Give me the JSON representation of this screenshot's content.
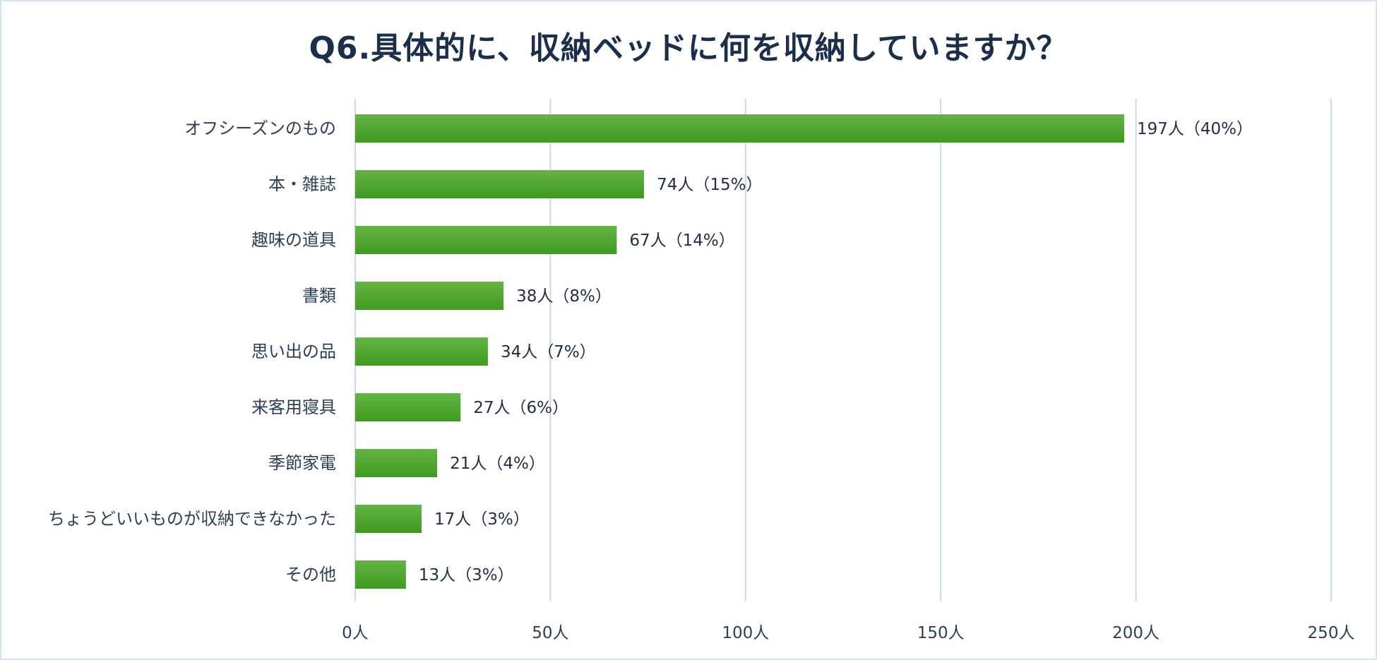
{
  "chart_data": {
    "type": "bar",
    "orientation": "horizontal",
    "title": "Q6.具体的に、収納ベッドに何を収納していますか？",
    "xlabel": "",
    "ylabel": "",
    "xlim": [
      0,
      250
    ],
    "ticks": [
      0,
      50,
      100,
      150,
      200,
      250
    ],
    "tick_labels": [
      "0人",
      "50人",
      "100人",
      "150人",
      "200人",
      "250人"
    ],
    "grid": true,
    "categories": [
      "オフシーズンのもの",
      "本・雑誌",
      "趣味の道具",
      "書類",
      "思い出の品",
      "来客用寝具",
      "季節家電",
      "ちょうどいいものが収納できなかった",
      "その他"
    ],
    "values": [
      197,
      74,
      67,
      38,
      34,
      27,
      21,
      17,
      13
    ],
    "data_labels": [
      "197人（40%）",
      "74人（15%）",
      "67人（14%）",
      "38人（8%）",
      "34人（7%）",
      "27人（6%）",
      "21人（4%）",
      "17人（3%）",
      "13人（3%）"
    ],
    "colors": {
      "bar_top": "#66b346",
      "bar_bottom": "#3f9a20",
      "grid": "#c9d9e8",
      "text": "#2b3f57",
      "title": "#1b2f4a"
    }
  }
}
